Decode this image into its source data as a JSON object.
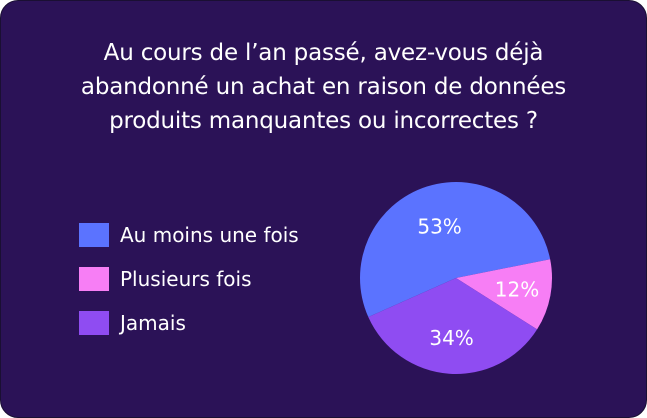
{
  "chart_data": {
    "type": "pie",
    "title_lines": [
      "Au cours de l’an passé, avez-vous déjà",
      "abandonné un achat en raison de données",
      "produits manquantes ou incorrectes ?"
    ],
    "slices": [
      {
        "label": "Au moins une fois",
        "value": 53,
        "value_label": "53%",
        "color": "#5b73ff"
      },
      {
        "label": "Plusieurs fois",
        "value": 12,
        "value_label": "12%",
        "color": "#f77ef5"
      },
      {
        "label": "Jamais",
        "value": 34,
        "value_label": "34%",
        "color": "#8f4cf2"
      }
    ],
    "legend_position": "left"
  },
  "colors": {
    "background": "#2b1257",
    "text": "#ffffff"
  }
}
